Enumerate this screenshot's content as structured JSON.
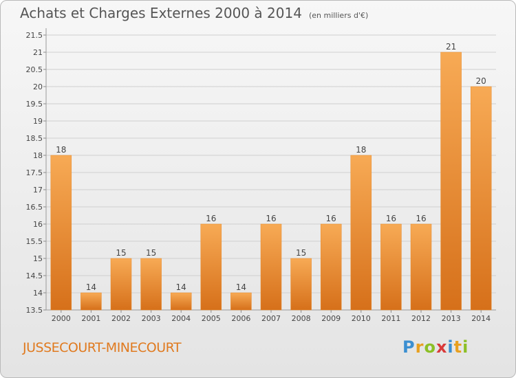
{
  "title": "Achats et Charges Externes 2000 à 2014",
  "subtitle": "(en milliers d'€)",
  "commune": "JUSSECOURT-MINECOURT",
  "logo": {
    "letters": [
      "P",
      "r",
      "o",
      "x",
      "i",
      "t",
      "i"
    ],
    "colors": [
      "#3b8fd1",
      "#e8a020",
      "#8cbf26",
      "#d93a3a",
      "#3b8fd1",
      "#e8a020",
      "#8cbf26"
    ]
  },
  "colors": {
    "bar": "#ef8c2e",
    "bar_light": "#f7aa55",
    "bar_dark": "#d6701a",
    "grid": "#cfcfcf",
    "text": "#444444"
  },
  "chart_data": {
    "type": "bar",
    "title": "Achats et Charges Externes 2000 à 2014",
    "subtitle": "(en milliers d'€)",
    "categories": [
      "2000",
      "2001",
      "2002",
      "2003",
      "2004",
      "2005",
      "2006",
      "2007",
      "2008",
      "2009",
      "2010",
      "2011",
      "2012",
      "2013",
      "2014"
    ],
    "values": [
      18,
      14,
      15,
      15,
      14,
      16,
      14,
      16,
      15,
      16,
      18,
      16,
      16,
      21,
      20
    ],
    "value_labels": [
      "18",
      "14",
      "15",
      "15",
      "14",
      "16",
      "14",
      "16",
      "15",
      "16",
      "18",
      "16",
      "16",
      "21",
      "20"
    ],
    "ylim": [
      13.5,
      21.5
    ],
    "yticks": [
      "13.5",
      "14",
      "14.5",
      "15",
      "15.5",
      "16",
      "16.5",
      "17",
      "17.5",
      "18",
      "18.5",
      "19",
      "19.5",
      "20",
      "20.5",
      "21",
      "21.5"
    ],
    "grid": true,
    "legend": "none"
  }
}
